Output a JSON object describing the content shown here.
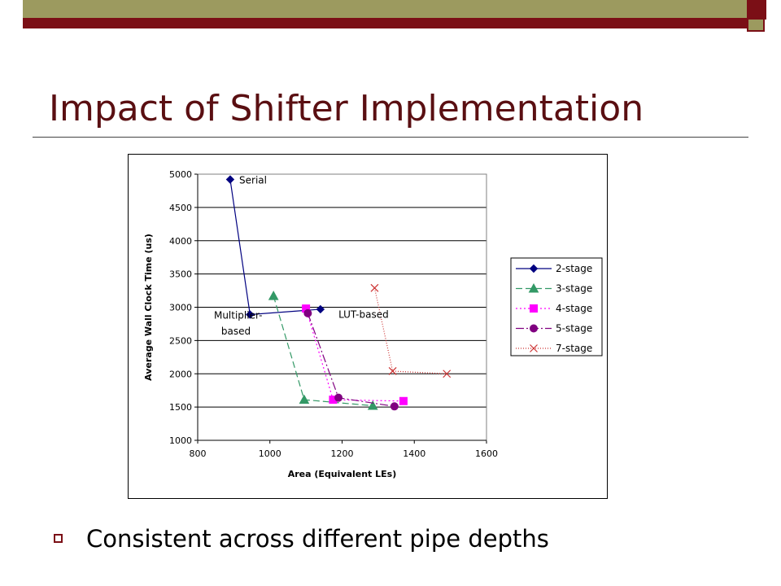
{
  "slide": {
    "title": "Impact of Shifter Implementation",
    "bullet": "Consistent across different pipe depths",
    "colors": {
      "maroon": "#7b0f16",
      "olive": "#9c9a5f",
      "title": "#5a0f12"
    }
  },
  "chart_data": {
    "type": "line",
    "title": "",
    "xlabel": "Area (Equivalent LEs)",
    "ylabel": "Average Wall Clock Time (us)",
    "xlim": [
      800,
      1600
    ],
    "ylim": [
      1000,
      5000
    ],
    "xticks": [
      800,
      1000,
      1200,
      1400,
      1600
    ],
    "yticks": [
      1000,
      1500,
      2000,
      2500,
      3000,
      3500,
      4000,
      4500,
      5000
    ],
    "grid": "horizontal",
    "legend": "right",
    "series": [
      {
        "name": "2-stage",
        "color": "#000080",
        "marker": "diamond",
        "dash": "",
        "points": [
          [
            890,
            4920
          ],
          [
            945,
            2890
          ],
          [
            1140,
            2970
          ]
        ]
      },
      {
        "name": "3-stage",
        "color": "#339966",
        "marker": "triangle",
        "dash": "8,4",
        "points": [
          [
            1010,
            3170
          ],
          [
            1095,
            1610
          ],
          [
            1285,
            1520
          ]
        ]
      },
      {
        "name": "4-stage",
        "color": "#ff00ff",
        "marker": "square",
        "dash": "2,3",
        "points": [
          [
            1100,
            2980
          ],
          [
            1175,
            1610
          ],
          [
            1370,
            1590
          ]
        ]
      },
      {
        "name": "5-stage",
        "color": "#800080",
        "marker": "circle",
        "dash": "10,3,2,3",
        "points": [
          [
            1105,
            2910
          ],
          [
            1190,
            1640
          ],
          [
            1345,
            1510
          ]
        ]
      },
      {
        "name": "7-stage",
        "color": "#cc3333",
        "marker": "x",
        "dash": "1,2",
        "points": [
          [
            1290,
            3290
          ],
          [
            1340,
            2040
          ],
          [
            1490,
            2000
          ]
        ]
      }
    ],
    "annotations": [
      {
        "text": "Serial",
        "x": 915,
        "y": 4860
      },
      {
        "text": "Multiplier-",
        "x": 845,
        "y": 2830
      },
      {
        "text": "based",
        "x": 865,
        "y": 2590
      },
      {
        "text": "LUT-based",
        "x": 1190,
        "y": 2840
      }
    ]
  }
}
